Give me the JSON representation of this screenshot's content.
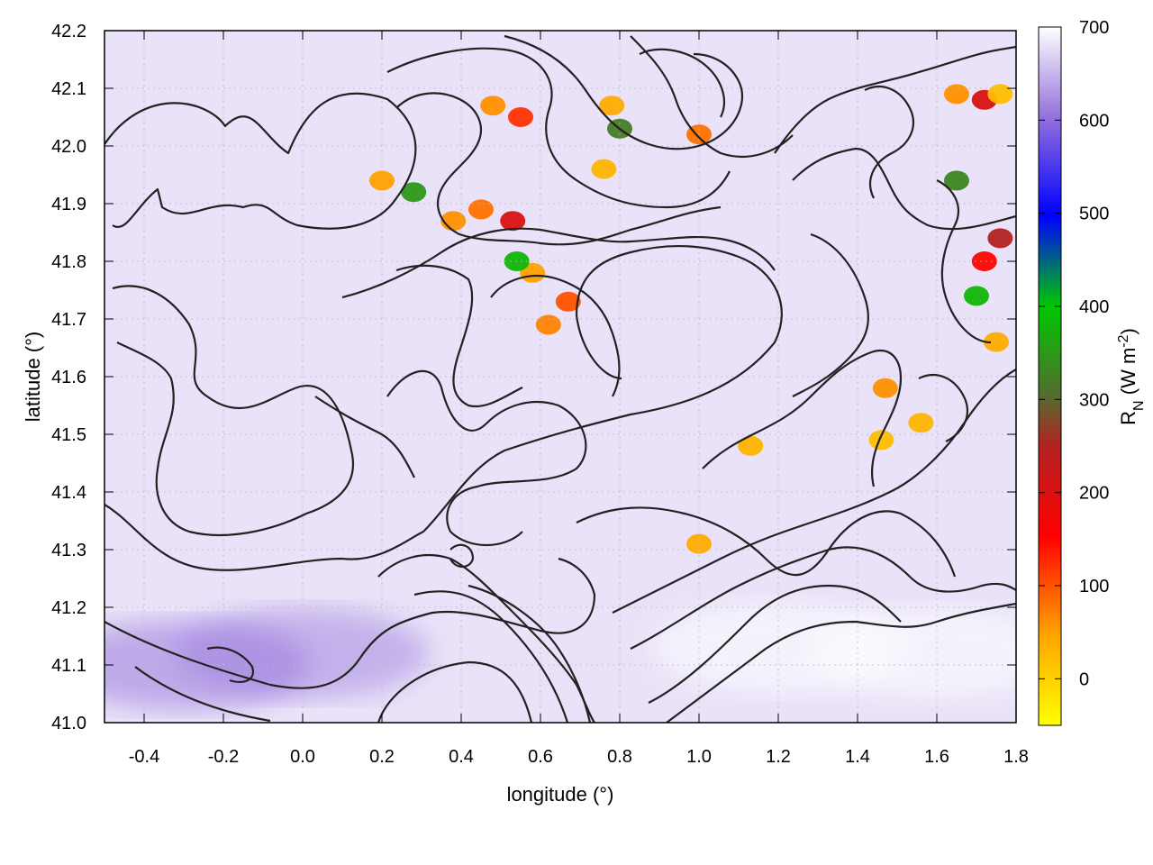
{
  "chart_data": {
    "type": "heatmap",
    "title": "",
    "xlabel": "longitude (°)",
    "ylabel": "latitude (°)",
    "xlim": [
      -0.5,
      1.8
    ],
    "ylim": [
      41.0,
      42.2
    ],
    "x_ticks": [
      "-0.4",
      "-0.2",
      "0.0",
      "0.2",
      "0.4",
      "0.6",
      "0.8",
      "1.0",
      "1.2",
      "1.4",
      "1.6",
      "1.8"
    ],
    "y_ticks": [
      "41.0",
      "41.1",
      "41.2",
      "41.3",
      "41.4",
      "41.5",
      "41.6",
      "41.7",
      "41.8",
      "41.9",
      "42.0",
      "42.1",
      "42.2"
    ],
    "grid": true,
    "contours": "terrain elevation contour lines (black)",
    "colorbar": {
      "label_main": "R",
      "label_sub": "N",
      "label_unit_pre": " (W m",
      "label_unit_sup": "-2",
      "label_unit_post": ")",
      "range": [
        -50,
        700
      ],
      "ticks": [
        "0",
        "100",
        "200",
        "300",
        "400",
        "500",
        "600",
        "700"
      ],
      "palette": [
        "#ffff00",
        "#ffa500",
        "#ff0000",
        "#b22222",
        "#556b2f",
        "#00c800",
        "#0000ff",
        "#9370db",
        "#ffffff"
      ]
    },
    "field": {
      "background_value": 680,
      "description_regions": [
        {
          "lon": 0.2,
          "lat": 41.94,
          "value": 50
        },
        {
          "lon": 0.28,
          "lat": 41.92,
          "value": 350
        },
        {
          "lon": 0.38,
          "lat": 41.87,
          "value": 60
        },
        {
          "lon": 0.45,
          "lat": 41.89,
          "value": 80
        },
        {
          "lon": 0.53,
          "lat": 41.87,
          "value": 200
        },
        {
          "lon": 0.58,
          "lat": 41.78,
          "value": 50
        },
        {
          "lon": 0.54,
          "lat": 41.8,
          "value": 380
        },
        {
          "lon": 0.67,
          "lat": 41.73,
          "value": 100
        },
        {
          "lon": 0.62,
          "lat": 41.69,
          "value": 70
        },
        {
          "lon": 0.48,
          "lat": 42.07,
          "value": 60
        },
        {
          "lon": 0.55,
          "lat": 42.05,
          "value": 120
        },
        {
          "lon": 0.78,
          "lat": 42.07,
          "value": 40
        },
        {
          "lon": 0.8,
          "lat": 42.03,
          "value": 320
        },
        {
          "lon": 0.76,
          "lat": 41.96,
          "value": 30
        },
        {
          "lon": 1.0,
          "lat": 42.02,
          "value": 80
        },
        {
          "lon": 1.13,
          "lat": 41.48,
          "value": 30
        },
        {
          "lon": 1.0,
          "lat": 41.31,
          "value": 40
        },
        {
          "lon": 1.65,
          "lat": 42.09,
          "value": 60
        },
        {
          "lon": 1.72,
          "lat": 42.08,
          "value": 200
        },
        {
          "lon": 1.76,
          "lat": 42.09,
          "value": 20
        },
        {
          "lon": 1.65,
          "lat": 41.94,
          "value": 330
        },
        {
          "lon": 1.72,
          "lat": 41.8,
          "value": 150
        },
        {
          "lon": 1.76,
          "lat": 41.84,
          "value": 250
        },
        {
          "lon": 1.7,
          "lat": 41.74,
          "value": 380
        },
        {
          "lon": 1.75,
          "lat": 41.66,
          "value": 40
        },
        {
          "lon": 1.46,
          "lat": 41.49,
          "value": 20
        },
        {
          "lon": 1.56,
          "lat": 41.52,
          "value": 30
        },
        {
          "lon": 1.47,
          "lat": 41.58,
          "value": 60
        },
        {
          "lon": 1.2,
          "lat": 41.13,
          "value": 700
        },
        {
          "lon": 1.6,
          "lat": 41.12,
          "value": 700
        },
        {
          "lon": 0.0,
          "lat": 41.12,
          "value": 620
        },
        {
          "lon": -0.3,
          "lat": 41.1,
          "value": 610
        }
      ]
    }
  }
}
